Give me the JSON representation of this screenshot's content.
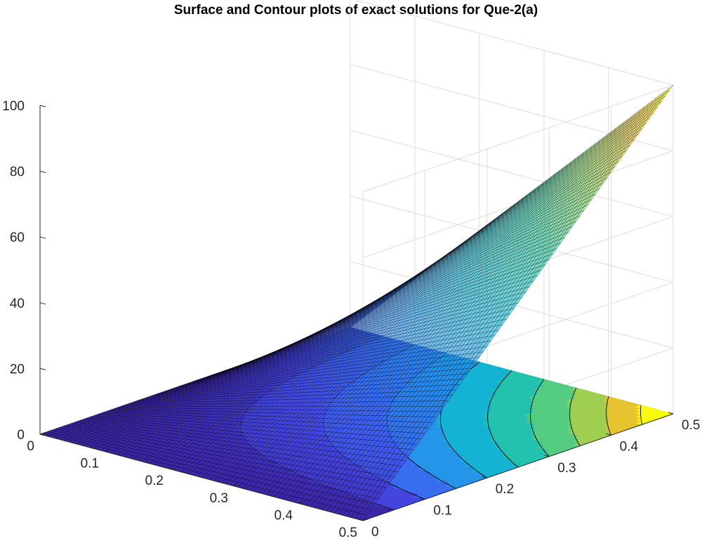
{
  "chart_data": {
    "type": "surface",
    "title": "Surface and Contour plots of exact solutions for Que-2(a)",
    "xlabel": "",
    "ylabel": "",
    "zlabel": "",
    "x_range": [
      0,
      0.5
    ],
    "y_range": [
      0,
      0.5
    ],
    "z_range": [
      0,
      100
    ],
    "x_ticks": [
      "0",
      "0.1",
      "0.2",
      "0.3",
      "0.4",
      "0.5"
    ],
    "y_ticks": [
      "0",
      "0.1",
      "0.2",
      "0.3",
      "0.4",
      "0.5"
    ],
    "z_ticks": [
      "0",
      "20",
      "40",
      "60",
      "80",
      "100"
    ],
    "grid": true,
    "surface_corners": [
      {
        "x": 0,
        "y": 0,
        "z": 0
      },
      {
        "x": 0.5,
        "y": 0,
        "z": 0
      },
      {
        "x": 0,
        "y": 0.5,
        "z": 0
      },
      {
        "x": 0.5,
        "y": 0.5,
        "z": 100
      }
    ],
    "contour_levels": [
      10,
      20,
      30,
      40,
      50,
      60,
      70,
      80,
      90
    ],
    "colormap": "parula",
    "colors": {
      "low": "#3e26a8",
      "high": "#f9fb0e",
      "edge": "#000000",
      "grid": "#dcdcdc",
      "axis": "#262626"
    }
  }
}
